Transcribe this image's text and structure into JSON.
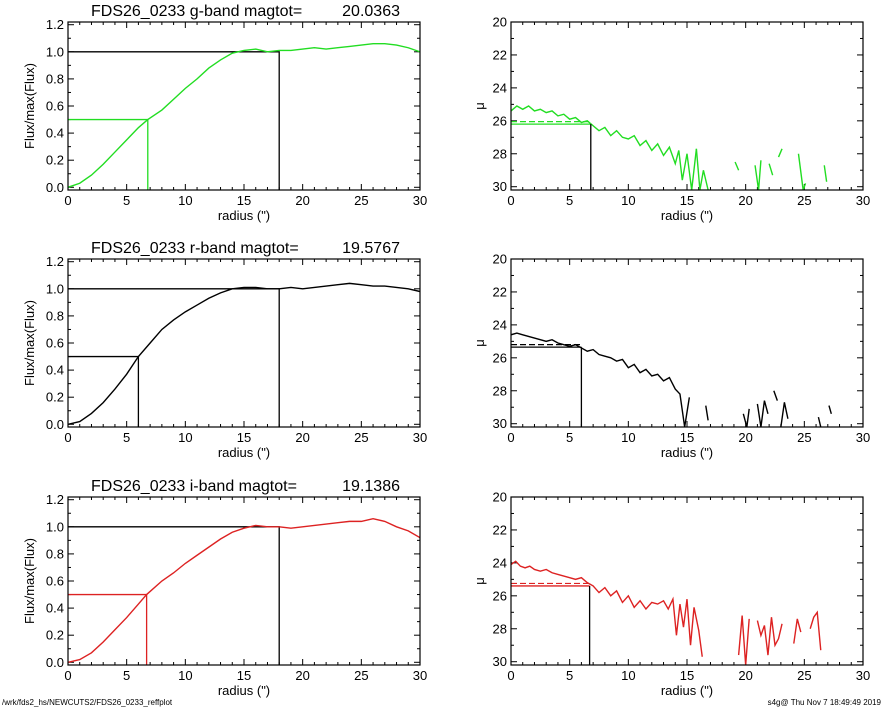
{
  "figure": {
    "footer_left": "/wrk/fds2_hs/NEWCUTS2/FDS26_0233_reffplot",
    "footer_right": "s4g@  Thu Nov  7 18:49:49 2019"
  },
  "chart_data": [
    {
      "type": "line",
      "band": "g",
      "title": "FDS26_0233 g-band  magtot=",
      "title_value": "20.0363",
      "xlabel": "radius (\")",
      "ylabel": "Flux/max(Flux)",
      "xlim": [
        0,
        30
      ],
      "ylim": [
        -0.02,
        1.22
      ],
      "xticks": [
        "0",
        "5",
        "10",
        "15",
        "20",
        "25",
        "30"
      ],
      "yticks": [
        "0.0",
        "0.2",
        "0.4",
        "0.6",
        "0.8",
        "1.0",
        "1.2"
      ],
      "color": "#22dd22",
      "x": [
        0,
        1,
        2,
        3,
        4,
        5,
        6,
        6.8,
        8,
        9,
        10,
        11,
        12,
        13,
        14,
        15,
        16,
        17,
        18,
        19,
        20,
        21,
        22,
        23,
        24,
        25,
        26,
        27,
        28,
        29,
        30
      ],
      "y": [
        0.0,
        0.03,
        0.09,
        0.17,
        0.26,
        0.35,
        0.44,
        0.5,
        0.57,
        0.65,
        0.73,
        0.8,
        0.88,
        0.94,
        0.99,
        1.01,
        1.02,
        1.0,
        1.01,
        1.01,
        1.02,
        1.03,
        1.02,
        1.03,
        1.04,
        1.05,
        1.06,
        1.06,
        1.05,
        1.03,
        1.0
      ],
      "half_radius": 6.8,
      "total_radius": 18.0
    },
    {
      "type": "line",
      "band": "g",
      "xlabel": "radius (\")",
      "ylabel": "μ",
      "xlim": [
        0,
        30
      ],
      "ylim": [
        30.2,
        20
      ],
      "xticks": [
        "0",
        "5",
        "10",
        "15",
        "20",
        "25",
        "30"
      ],
      "yticks": [
        "20",
        "22",
        "24",
        "26",
        "28",
        "30"
      ],
      "color": "#22dd22",
      "mu_half": 26.2,
      "half_radius": 6.8,
      "segments": [
        {
          "x": [
            0,
            0.5,
            1,
            1.5,
            2,
            2.5,
            3,
            3.5,
            4,
            4.5,
            5,
            5.5,
            6,
            6.5,
            7,
            7.5,
            8,
            8.5,
            9,
            9.5,
            10,
            10.5,
            11,
            11.5,
            12,
            12.5,
            13,
            13.5,
            14,
            14.3,
            14.6,
            15,
            15.4,
            15.8
          ],
          "y": [
            25.4,
            25.1,
            25.3,
            25.1,
            25.4,
            25.3,
            25.5,
            25.4,
            25.7,
            25.6,
            25.9,
            25.8,
            26.1,
            26.0,
            26.3,
            26.6,
            26.4,
            26.9,
            26.6,
            27.0,
            27.1,
            26.9,
            27.5,
            27.2,
            27.8,
            27.4,
            28.1,
            27.6,
            28.6,
            27.8,
            29.6,
            28.0,
            30.2,
            27.7
          ]
        },
        {
          "x": [
            15.8,
            16.1,
            16.4,
            16.8
          ],
          "y": [
            27.7,
            30.2,
            29.0,
            30.2
          ]
        },
        {
          "x": [
            19.1,
            19.4
          ],
          "y": [
            28.5,
            29.0
          ]
        },
        {
          "x": [
            20.8,
            21.1,
            21.3
          ],
          "y": [
            28.7,
            30.2,
            28.4
          ]
        },
        {
          "x": [
            22.0,
            22.3
          ],
          "y": [
            28.6,
            29.3
          ]
        },
        {
          "x": [
            22.8,
            23.1
          ],
          "y": [
            28.2,
            27.7
          ]
        },
        {
          "x": [
            24.5,
            24.9,
            25.1
          ],
          "y": [
            28.0,
            30.2,
            29.8
          ]
        },
        {
          "x": [
            26.7,
            26.9
          ],
          "y": [
            28.7,
            29.7
          ]
        }
      ]
    },
    {
      "type": "line",
      "band": "r",
      "title": "FDS26_0233 r-band  magtot=",
      "title_value": "19.5767",
      "xlabel": "radius (\")",
      "ylabel": "Flux/max(Flux)",
      "xlim": [
        0,
        30
      ],
      "ylim": [
        -0.02,
        1.22
      ],
      "xticks": [
        "0",
        "5",
        "10",
        "15",
        "20",
        "25",
        "30"
      ],
      "yticks": [
        "0.0",
        "0.2",
        "0.4",
        "0.6",
        "0.8",
        "1.0",
        "1.2"
      ],
      "color": "#000000",
      "x": [
        0,
        1,
        2,
        3,
        4,
        5,
        6,
        7,
        8,
        9,
        10,
        11,
        12,
        13,
        14,
        15,
        16,
        17,
        18,
        19,
        20,
        21,
        22,
        23,
        24,
        25,
        26,
        27,
        28,
        29,
        30
      ],
      "y": [
        0.0,
        0.02,
        0.08,
        0.16,
        0.26,
        0.37,
        0.5,
        0.6,
        0.7,
        0.77,
        0.83,
        0.88,
        0.93,
        0.97,
        1.0,
        1.01,
        1.01,
        1.0,
        1.0,
        1.01,
        1.0,
        1.01,
        1.02,
        1.03,
        1.04,
        1.03,
        1.02,
        1.02,
        1.01,
        1.0,
        0.98
      ],
      "half_radius": 6.0,
      "total_radius": 18.0
    },
    {
      "type": "line",
      "band": "r",
      "xlabel": "radius (\")",
      "ylabel": "μ",
      "xlim": [
        0,
        30
      ],
      "ylim": [
        30.2,
        20
      ],
      "xticks": [
        "0",
        "5",
        "10",
        "15",
        "20",
        "25",
        "30"
      ],
      "yticks": [
        "20",
        "22",
        "24",
        "26",
        "28",
        "30"
      ],
      "color": "#000000",
      "mu_half": 25.35,
      "half_radius": 6.0,
      "segments": [
        {
          "x": [
            0,
            0.5,
            1,
            1.5,
            2,
            2.5,
            3,
            3.5,
            4,
            4.5,
            5,
            5.5,
            6,
            6.5,
            7,
            7.5,
            8,
            8.5,
            9,
            9.5,
            10,
            10.5,
            11,
            11.5,
            12,
            12.5,
            13,
            13.5,
            14,
            14.4,
            14.8,
            15.2
          ],
          "y": [
            24.6,
            24.5,
            24.6,
            24.7,
            24.8,
            24.9,
            25.0,
            24.9,
            25.1,
            25.2,
            25.3,
            25.2,
            25.4,
            25.6,
            25.5,
            25.8,
            25.9,
            26.0,
            26.2,
            26.1,
            26.6,
            26.4,
            26.9,
            26.7,
            27.1,
            27.0,
            27.4,
            27.2,
            27.9,
            28.2,
            30.2,
            28.4
          ]
        },
        {
          "x": [
            16.6,
            16.8
          ],
          "y": [
            28.9,
            29.8
          ]
        },
        {
          "x": [
            19.8,
            20.1,
            20.3
          ],
          "y": [
            29.4,
            30.2,
            29.1
          ]
        },
        {
          "x": [
            21.0,
            21.3,
            21.6,
            21.9
          ],
          "y": [
            28.8,
            30.2,
            28.6,
            29.4
          ]
        },
        {
          "x": [
            22.4,
            22.7
          ],
          "y": [
            28.0,
            28.6
          ]
        },
        {
          "x": [
            23.0,
            23.3,
            23.6
          ],
          "y": [
            30.2,
            28.7,
            29.7
          ]
        },
        {
          "x": [
            26.2,
            26.4
          ],
          "y": [
            29.6,
            30.2
          ]
        },
        {
          "x": [
            27.1,
            27.3
          ],
          "y": [
            28.9,
            29.4
          ]
        }
      ]
    },
    {
      "type": "line",
      "band": "i",
      "title": "FDS26_0233 i-band  magtot=",
      "title_value": "19.1386",
      "xlabel": "radius (\")",
      "ylabel": "Flux/max(Flux)",
      "xlim": [
        0,
        30
      ],
      "ylim": [
        -0.02,
        1.22
      ],
      "xticks": [
        "0",
        "5",
        "10",
        "15",
        "20",
        "25",
        "30"
      ],
      "yticks": [
        "0.0",
        "0.2",
        "0.4",
        "0.6",
        "0.8",
        "1.0",
        "1.2"
      ],
      "color": "#dd2222",
      "x": [
        0,
        1,
        2,
        3,
        4,
        5,
        6,
        6.7,
        8,
        9,
        10,
        11,
        12,
        13,
        14,
        15,
        16,
        17,
        18,
        19,
        20,
        21,
        22,
        23,
        24,
        25,
        26,
        27,
        28,
        29,
        30
      ],
      "y": [
        0.0,
        0.02,
        0.07,
        0.15,
        0.24,
        0.33,
        0.43,
        0.5,
        0.6,
        0.66,
        0.73,
        0.79,
        0.85,
        0.91,
        0.96,
        0.99,
        1.01,
        1.0,
        1.0,
        0.99,
        1.0,
        1.01,
        1.02,
        1.03,
        1.04,
        1.04,
        1.06,
        1.04,
        1.0,
        0.97,
        0.92
      ],
      "half_radius": 6.7,
      "total_radius": 18.0
    },
    {
      "type": "line",
      "band": "i",
      "xlabel": "radius (\")",
      "ylabel": "μ",
      "xlim": [
        0,
        30
      ],
      "ylim": [
        30.2,
        20
      ],
      "xticks": [
        "0",
        "5",
        "10",
        "15",
        "20",
        "25",
        "30"
      ],
      "yticks": [
        "20",
        "22",
        "24",
        "26",
        "28",
        "30"
      ],
      "color": "#dd2222",
      "mu_half": 25.4,
      "half_radius": 6.7,
      "segments": [
        {
          "x": [
            0,
            0.4,
            0.8,
            1.2,
            1.6,
            2,
            2.5,
            3,
            3.5,
            4,
            4.5,
            5,
            5.5,
            6,
            6.5,
            7,
            7.5,
            8,
            8.5,
            9,
            9.5,
            10,
            10.5,
            11,
            11.5,
            12,
            12.5,
            13,
            13.4,
            13.8,
            14.1,
            14.4,
            14.7,
            15.0,
            15.3,
            15.6,
            16.0,
            16.3
          ],
          "y": [
            24.1,
            23.9,
            24.2,
            24.3,
            24.2,
            24.4,
            24.5,
            24.4,
            24.6,
            24.7,
            24.8,
            24.9,
            25.0,
            24.9,
            25.2,
            25.4,
            25.8,
            25.5,
            26.0,
            25.7,
            26.4,
            26.0,
            26.7,
            26.3,
            26.8,
            26.4,
            26.5,
            26.3,
            26.8,
            26.2,
            28.4,
            26.5,
            27.9,
            26.2,
            29.0,
            26.7,
            28.1,
            29.7
          ]
        },
        {
          "x": [
            19.4,
            19.7,
            20.0,
            20.3
          ],
          "y": [
            29.6,
            27.2,
            30.2,
            27.4
          ]
        },
        {
          "x": [
            21.0,
            21.3,
            21.6,
            21.9,
            22.2,
            22.5,
            22.8,
            23.1
          ],
          "y": [
            27.5,
            28.4,
            27.8,
            29.6,
            27.3,
            29.0,
            28.6,
            27.7
          ]
        },
        {
          "x": [
            24.1,
            24.4,
            24.7
          ],
          "y": [
            28.9,
            27.4,
            28.2
          ]
        },
        {
          "x": [
            25.5,
            25.8,
            26.1,
            26.4
          ],
          "y": [
            28.0,
            27.3,
            27.0,
            29.3
          ]
        }
      ]
    }
  ]
}
